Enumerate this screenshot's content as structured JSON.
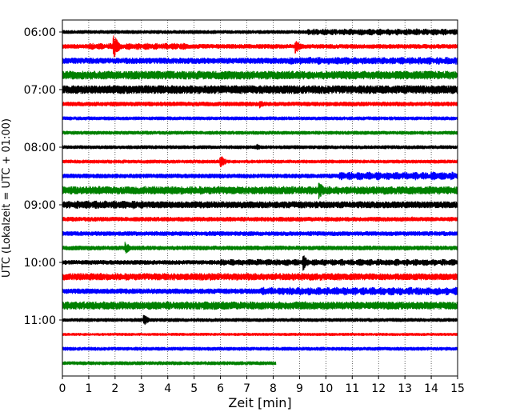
{
  "chart_data": {
    "type": "line",
    "subtype": "helicorder",
    "xlabel": "Zeit  [min]",
    "ylabel": "UTC (Lokalzeit = UTC + 01:00)",
    "xlim": [
      0,
      15
    ],
    "x_ticks": [
      "0",
      "1",
      "2",
      "3",
      "4",
      "5",
      "6",
      "7",
      "8",
      "9",
      "10",
      "11",
      "12",
      "13",
      "14",
      "15"
    ],
    "y_ticks": [
      "06:00",
      "07:00",
      "08:00",
      "09:00",
      "10:00",
      "11:00"
    ],
    "grid": "vertical dotted",
    "trace_minutes": 15,
    "trace_colors": [
      "#000000",
      "#ff0000",
      "#0000ff",
      "#008000"
    ],
    "traces": [
      {
        "start": "06:00",
        "end_minute": 15,
        "amp": 2.0,
        "bursts": [
          {
            "from": 9.3,
            "to": 15,
            "amp": 4
          }
        ]
      },
      {
        "start": "06:15",
        "end_minute": 15,
        "amp": 2.5,
        "events": [
          {
            "at": 1.95,
            "amp": 16
          },
          {
            "at": 8.85,
            "amp": 10
          }
        ],
        "bursts": [
          {
            "from": 1.0,
            "to": 4.8,
            "amp": 4
          }
        ]
      },
      {
        "start": "06:30",
        "end_minute": 15,
        "amp": 3.5,
        "bursts": [
          {
            "from": 8.5,
            "to": 15,
            "amp": 4.5
          }
        ]
      },
      {
        "start": "06:45",
        "end_minute": 15,
        "amp": 5.0,
        "bursts": [
          {
            "from": 0,
            "to": 15,
            "amp": 5
          }
        ]
      },
      {
        "start": "07:00",
        "end_minute": 15,
        "amp": 5.0,
        "bursts": [
          {
            "from": 0,
            "to": 15,
            "amp": 5
          }
        ]
      },
      {
        "start": "07:15",
        "end_minute": 15,
        "amp": 2.5,
        "events": [
          {
            "at": 7.5,
            "amp": 6
          }
        ]
      },
      {
        "start": "07:30",
        "end_minute": 15,
        "amp": 2.0
      },
      {
        "start": "07:45",
        "end_minute": 15,
        "amp": 2.0
      },
      {
        "start": "08:00",
        "end_minute": 15,
        "amp": 2.0,
        "events": [
          {
            "at": 7.4,
            "amp": 4
          }
        ]
      },
      {
        "start": "08:15",
        "end_minute": 15,
        "amp": 2.0,
        "events": [
          {
            "at": 6.0,
            "amp": 9
          }
        ]
      },
      {
        "start": "08:30",
        "end_minute": 15,
        "amp": 2.5,
        "bursts": [
          {
            "from": 10.5,
            "to": 15,
            "amp": 5
          }
        ]
      },
      {
        "start": "08:45",
        "end_minute": 15,
        "amp": 4.5,
        "events": [
          {
            "at": 9.75,
            "amp": 12
          }
        ],
        "bursts": [
          {
            "from": 0,
            "to": 15,
            "amp": 5
          }
        ]
      },
      {
        "start": "09:00",
        "end_minute": 15,
        "amp": 4.0,
        "bursts": [
          {
            "from": 0,
            "to": 3.1,
            "amp": 5
          }
        ]
      },
      {
        "start": "09:15",
        "end_minute": 15,
        "amp": 2.5,
        "events": [
          {
            "at": 13.3,
            "amp": 3
          }
        ]
      },
      {
        "start": "09:30",
        "end_minute": 15,
        "amp": 2.5
      },
      {
        "start": "09:45",
        "end_minute": 15,
        "amp": 2.5,
        "events": [
          {
            "at": 2.4,
            "amp": 8
          }
        ]
      },
      {
        "start": "10:00",
        "end_minute": 15,
        "amp": 2.5,
        "events": [
          {
            "at": 9.15,
            "amp": 10
          }
        ],
        "bursts": [
          {
            "from": 6.0,
            "to": 15,
            "amp": 4
          }
        ]
      },
      {
        "start": "10:15",
        "end_minute": 15,
        "amp": 4.0,
        "bursts": [
          {
            "from": 0,
            "to": 10.8,
            "amp": 4.5
          }
        ]
      },
      {
        "start": "10:30",
        "end_minute": 15,
        "amp": 3.0,
        "bursts": [
          {
            "from": 7.5,
            "to": 15,
            "amp": 5
          }
        ]
      },
      {
        "start": "10:45",
        "end_minute": 15,
        "amp": 4.5,
        "events": [
          {
            "at": 14.0,
            "amp": 3
          }
        ],
        "bursts": [
          {
            "from": 0,
            "to": 12.5,
            "amp": 5
          }
        ]
      },
      {
        "start": "11:00",
        "end_minute": 15,
        "amp": 2.0,
        "events": [
          {
            "at": 3.1,
            "amp": 7
          }
        ]
      },
      {
        "start": "11:15",
        "end_minute": 15,
        "amp": 1.5
      },
      {
        "start": "11:30",
        "end_minute": 15,
        "amp": 2.0
      },
      {
        "start": "11:45",
        "end_minute": 8.1,
        "amp": 2.0
      }
    ]
  }
}
